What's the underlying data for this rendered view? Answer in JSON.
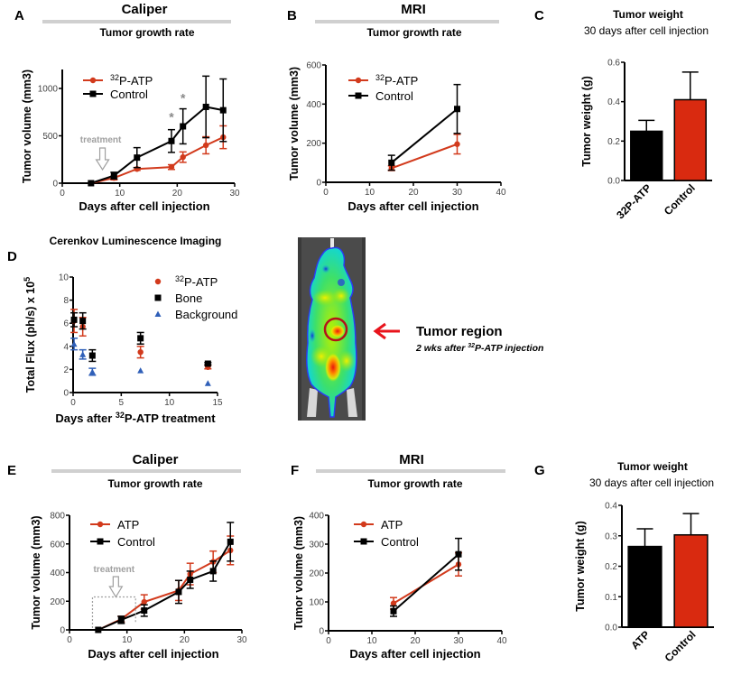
{
  "figure": {
    "panels": {
      "A": {
        "letter": "A",
        "header": "Caliper",
        "subheader": "Tumor growth rate"
      },
      "B": {
        "letter": "B",
        "header": "MRI",
        "subheader": "Tumor growth rate"
      },
      "C": {
        "letter": "C",
        "header": "Tumor weight",
        "subheader": "30 days after cell injection"
      },
      "D": {
        "letter": "D",
        "header": "Cerenkov Luminescence Imaging"
      },
      "E": {
        "letter": "E",
        "header": "Caliper",
        "subheader": "Tumor growth rate"
      },
      "F": {
        "letter": "F",
        "header": "MRI",
        "subheader": "Tumor growth rate"
      },
      "G": {
        "letter": "G",
        "header": "Tumor weight",
        "subheader": "30 days after cell injection"
      }
    },
    "image_panel": {
      "label": "Tumor region",
      "sublabel_pre": "2 wks after ",
      "sublabel_sup": "32",
      "sublabel_post": "P-ATP injection",
      "arrow_color": "#e8141c",
      "circle_color": "#b3121a"
    },
    "colors": {
      "treated": "#d23a1c",
      "control": "#000000",
      "background": "#2f5fb8",
      "bar_red": "#d92a10",
      "header_rule": "#cfcfcf",
      "annotation_gray": "#9a9a9a"
    }
  },
  "chart_data": [
    {
      "id": "A",
      "type": "line",
      "title": "Caliper",
      "subtitle": "Tumor growth rate",
      "xlabel": "Days after cell injection",
      "ylabel": "Tumor volume  (mm3)",
      "xlim": [
        0,
        30
      ],
      "ylim": [
        0,
        1200
      ],
      "xticks": [
        0,
        10,
        20,
        30
      ],
      "yticks": [
        0,
        500,
        1000
      ],
      "legend": "top-left",
      "annotation": {
        "text": "treatment",
        "x": 7
      },
      "significance": [
        {
          "x": 19,
          "y": 700,
          "text": "*"
        },
        {
          "x": 21,
          "y": 900,
          "text": "*"
        }
      ],
      "series": [
        {
          "name": "32P-ATP",
          "legend_sup": "32",
          "legend_main": "P-ATP",
          "color": "#d23a1c",
          "marker": "circle",
          "x": [
            5,
            9,
            13,
            19,
            21,
            25,
            28
          ],
          "y": [
            0,
            55,
            150,
            170,
            275,
            400,
            485
          ],
          "err": [
            0,
            20,
            15,
            25,
            55,
            90,
            120
          ]
        },
        {
          "name": "Control",
          "legend_sup": "",
          "legend_main": "Control",
          "color": "#000000",
          "marker": "square",
          "x": [
            5,
            9,
            13,
            19,
            21,
            25,
            28
          ],
          "y": [
            0,
            80,
            270,
            445,
            600,
            805,
            770
          ],
          "err": [
            0,
            35,
            105,
            120,
            185,
            325,
            330
          ]
        }
      ]
    },
    {
      "id": "B",
      "type": "line",
      "title": "MRI",
      "subtitle": "Tumor growth rate",
      "xlabel": "Days after cell injection",
      "ylabel": "Tumor volume  (mm3)",
      "xlim": [
        0,
        40
      ],
      "ylim": [
        0,
        600
      ],
      "xticks": [
        0,
        10,
        20,
        30,
        40
      ],
      "yticks": [
        0,
        200,
        400,
        600
      ],
      "legend": "top-left",
      "series": [
        {
          "name": "32P-ATP",
          "legend_sup": "32",
          "legend_main": "P-ATP",
          "color": "#d23a1c",
          "marker": "circle",
          "x": [
            15,
            30
          ],
          "y": [
            72,
            195
          ],
          "err": [
            12,
            50
          ]
        },
        {
          "name": "Control",
          "legend_sup": "",
          "legend_main": "Control",
          "color": "#000000",
          "marker": "square",
          "x": [
            15,
            30
          ],
          "y": [
            100,
            375
          ],
          "err": [
            38,
            125
          ]
        }
      ]
    },
    {
      "id": "C",
      "type": "bar",
      "title": "Tumor weight",
      "subtitle": "30 days after cell injection",
      "ylabel": "Tumor weight  (g)",
      "ylim": [
        0,
        0.6
      ],
      "yticks": [
        "0.0",
        "0.2",
        "0.4",
        "0.6"
      ],
      "categories": [
        "32P-ATP",
        "Control"
      ],
      "values": [
        0.25,
        0.41
      ],
      "err": [
        0.055,
        0.14
      ],
      "colors": [
        "#000000",
        "#d92a10"
      ]
    },
    {
      "id": "D",
      "type": "scatter",
      "title": "Cerenkov Luminescence Imaging",
      "xlabel_pre": "Days after ",
      "xlabel_sup": "32",
      "xlabel_post": "P-ATP treatment",
      "ylabel": "Total Flux (ph/s) x 10",
      "ylabel_sup": "5",
      "xlim": [
        0,
        15
      ],
      "ylim": [
        0,
        10
      ],
      "xticks": [
        0,
        5,
        10,
        15
      ],
      "yticks": [
        0,
        2,
        4,
        6,
        8,
        10
      ],
      "legend": "top-right",
      "series": [
        {
          "name": "32P-ATP",
          "legend_sup": "32",
          "legend_main": "P-ATP",
          "color": "#d23a1c",
          "marker": "circle",
          "x": [
            0.1,
            1,
            7,
            14
          ],
          "y": [
            6.2,
            5.7,
            3.5,
            2.2
          ],
          "err": [
            1.0,
            0.8,
            0.5,
            0.15
          ]
        },
        {
          "name": "Bone",
          "legend_sup": "",
          "legend_main": "Bone",
          "color": "#000000",
          "marker": "square",
          "x": [
            0.1,
            1,
            2,
            7,
            14
          ],
          "y": [
            6.3,
            6.2,
            3.2,
            4.7,
            2.5
          ],
          "err": [
            0.6,
            0.7,
            0.5,
            0.5,
            0.1
          ]
        },
        {
          "name": "Background",
          "legend_sup": "",
          "legend_main": "Background",
          "color": "#2f5fb8",
          "marker": "triangle",
          "x": [
            0.1,
            1,
            2,
            7,
            14
          ],
          "y": [
            4.2,
            3.3,
            1.8,
            1.9,
            0.8
          ],
          "err": [
            0.5,
            0.4,
            0.3,
            0,
            0
          ]
        }
      ]
    },
    {
      "id": "E",
      "type": "line",
      "title": "Caliper",
      "subtitle": "Tumor growth rate",
      "xlabel": "Days after cell injection",
      "ylabel": "Tumor volume  (mm3)",
      "xlim": [
        0,
        30
      ],
      "ylim": [
        0,
        800
      ],
      "xticks": [
        0,
        10,
        20,
        30
      ],
      "yticks": [
        0,
        200,
        400,
        600,
        800
      ],
      "legend": "top-left",
      "annotation": {
        "text": "treatment",
        "x_start": 4,
        "x_end": 11.5,
        "y_box": 230
      },
      "series": [
        {
          "name": "ATP",
          "legend_sup": "",
          "legend_main": "ATP",
          "color": "#d23a1c",
          "marker": "circle",
          "x": [
            5,
            9,
            13,
            19,
            21,
            25,
            28
          ],
          "y": [
            0,
            75,
            195,
            275,
            390,
            475,
            555
          ],
          "err": [
            0,
            20,
            50,
            70,
            75,
            75,
            100
          ]
        },
        {
          "name": "Control",
          "legend_sup": "",
          "legend_main": "Control",
          "color": "#000000",
          "marker": "square",
          "x": [
            5,
            9,
            13,
            19,
            21,
            25,
            28
          ],
          "y": [
            0,
            70,
            135,
            265,
            350,
            410,
            615
          ],
          "err": [
            0,
            25,
            40,
            80,
            60,
            70,
            135
          ]
        }
      ]
    },
    {
      "id": "F",
      "type": "line",
      "title": "MRI",
      "subtitle": "Tumor growth rate",
      "xlabel": "Days after cell injection",
      "ylabel": "Tumor volume  (mm3)",
      "xlim": [
        0,
        40
      ],
      "ylim": [
        0,
        400
      ],
      "xticks": [
        0,
        10,
        20,
        30,
        40
      ],
      "yticks": [
        0,
        100,
        200,
        300,
        400
      ],
      "legend": "top-left",
      "series": [
        {
          "name": "ATP",
          "legend_sup": "",
          "legend_main": "ATP",
          "color": "#d23a1c",
          "marker": "circle",
          "x": [
            15,
            30
          ],
          "y": [
            95,
            230
          ],
          "err": [
            20,
            40
          ]
        },
        {
          "name": "Control",
          "legend_sup": "",
          "legend_main": "Control",
          "color": "#000000",
          "marker": "square",
          "x": [
            15,
            30
          ],
          "y": [
            68,
            265
          ],
          "err": [
            18,
            55
          ]
        }
      ]
    },
    {
      "id": "G",
      "type": "bar",
      "title": "Tumor weight",
      "subtitle": "30 days after cell injection",
      "ylabel": "Tumor weight  (g)",
      "ylim": [
        0,
        0.4
      ],
      "yticks": [
        "0.0",
        "0.1",
        "0.2",
        "0.3",
        "0.4"
      ],
      "categories": [
        "ATP",
        "Control"
      ],
      "values": [
        0.265,
        0.303
      ],
      "err": [
        0.058,
        0.07
      ],
      "colors": [
        "#000000",
        "#d92a10"
      ]
    }
  ]
}
